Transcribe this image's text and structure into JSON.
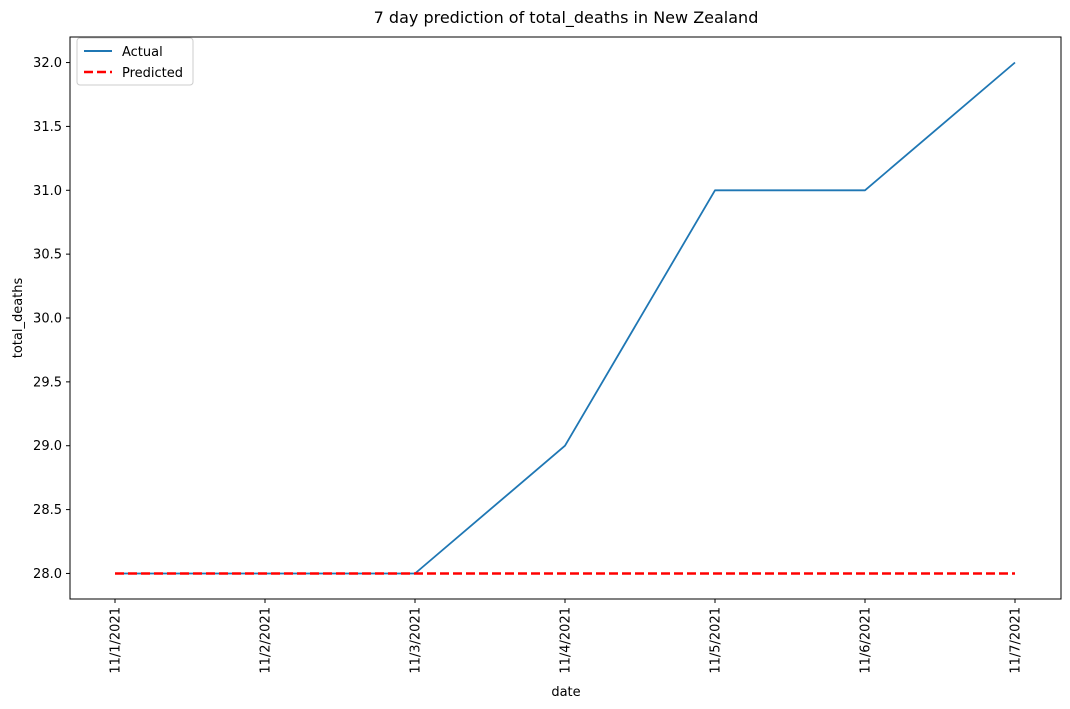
{
  "chart_data": {
    "type": "line",
    "title": "7 day prediction of total_deaths in New Zealand",
    "xlabel": "date",
    "ylabel": "total_deaths",
    "categories": [
      "11/1/2021",
      "11/2/2021",
      "11/3/2021",
      "11/4/2021",
      "11/5/2021",
      "11/6/2021",
      "11/7/2021"
    ],
    "series": [
      {
        "name": "Actual",
        "values": [
          28,
          28,
          28,
          29,
          31,
          31,
          32
        ],
        "color": "#1f77b4",
        "style": "solid"
      },
      {
        "name": "Predicted",
        "values": [
          28,
          28,
          28,
          28,
          28,
          28,
          28
        ],
        "color": "#ff0000",
        "style": "dashed"
      }
    ],
    "yticks": [
      "28.0",
      "28.5",
      "29.0",
      "29.5",
      "30.0",
      "30.5",
      "31.0",
      "31.5",
      "32.0"
    ],
    "ylim": [
      27.8,
      32.2
    ],
    "grid": false,
    "legend": "top-left"
  }
}
